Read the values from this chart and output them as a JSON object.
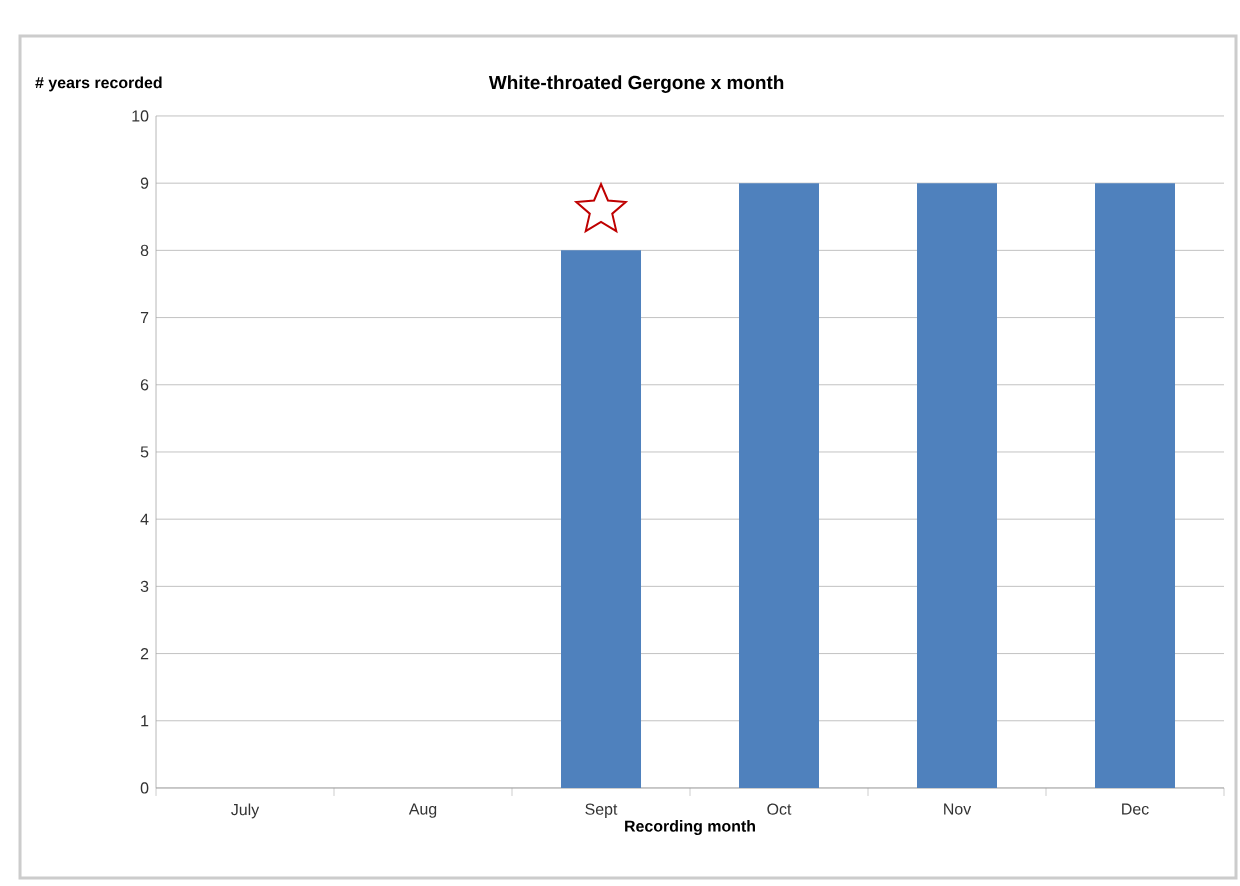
{
  "chart_data": {
    "type": "bar",
    "title": "White-throated Gergone x month",
    "xlabel": "Recording month",
    "ylabel": "# years recorded",
    "categories": [
      "July",
      "Aug",
      "Sept",
      "Oct",
      "Nov",
      "Dec"
    ],
    "values": [
      0,
      0,
      8,
      9,
      9,
      9
    ],
    "color": "#4f81bd",
    "ylim": [
      0,
      10
    ],
    "yticks": [
      0,
      1,
      2,
      3,
      4,
      5,
      6,
      7,
      8,
      9,
      10
    ],
    "grid": "y"
  }
}
